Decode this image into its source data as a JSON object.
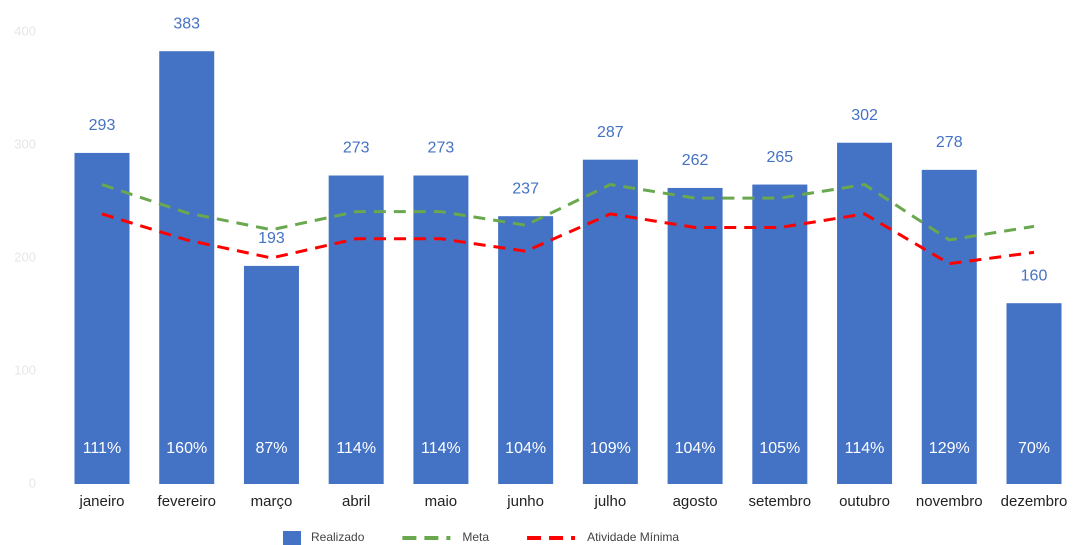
{
  "chart_data": {
    "type": "bar",
    "categories": [
      "janeiro",
      "fevereiro",
      "março",
      "abril",
      "maio",
      "junho",
      "julho",
      "agosto",
      "setembro",
      "outubro",
      "novembro",
      "dezembro"
    ],
    "series": [
      {
        "name": "Realizado",
        "type": "bar",
        "color": "#4472c4",
        "values": [
          293,
          383,
          193,
          273,
          273,
          237,
          287,
          262,
          265,
          302,
          278,
          160
        ]
      },
      {
        "name": "Meta",
        "type": "line",
        "color": "#6aa84f",
        "values": [
          265,
          240,
          225,
          241,
          241,
          229,
          265,
          253,
          253,
          265,
          216,
          228
        ]
      },
      {
        "name": "Atividade Mínima",
        "type": "line",
        "color": "#ff0000",
        "values": [
          239,
          216,
          200,
          217,
          217,
          206,
          239,
          227,
          227,
          239,
          195,
          205
        ]
      }
    ],
    "bar_annotations": [
      "111%",
      "160%",
      "87%",
      "114%",
      "114%",
      "104%",
      "109%",
      "104%",
      "105%",
      "114%",
      "129%",
      "70%"
    ],
    "ylim": [
      0,
      400
    ],
    "yticks": [
      0,
      100,
      200,
      300,
      400
    ],
    "grid": false,
    "legend": "bottom"
  }
}
